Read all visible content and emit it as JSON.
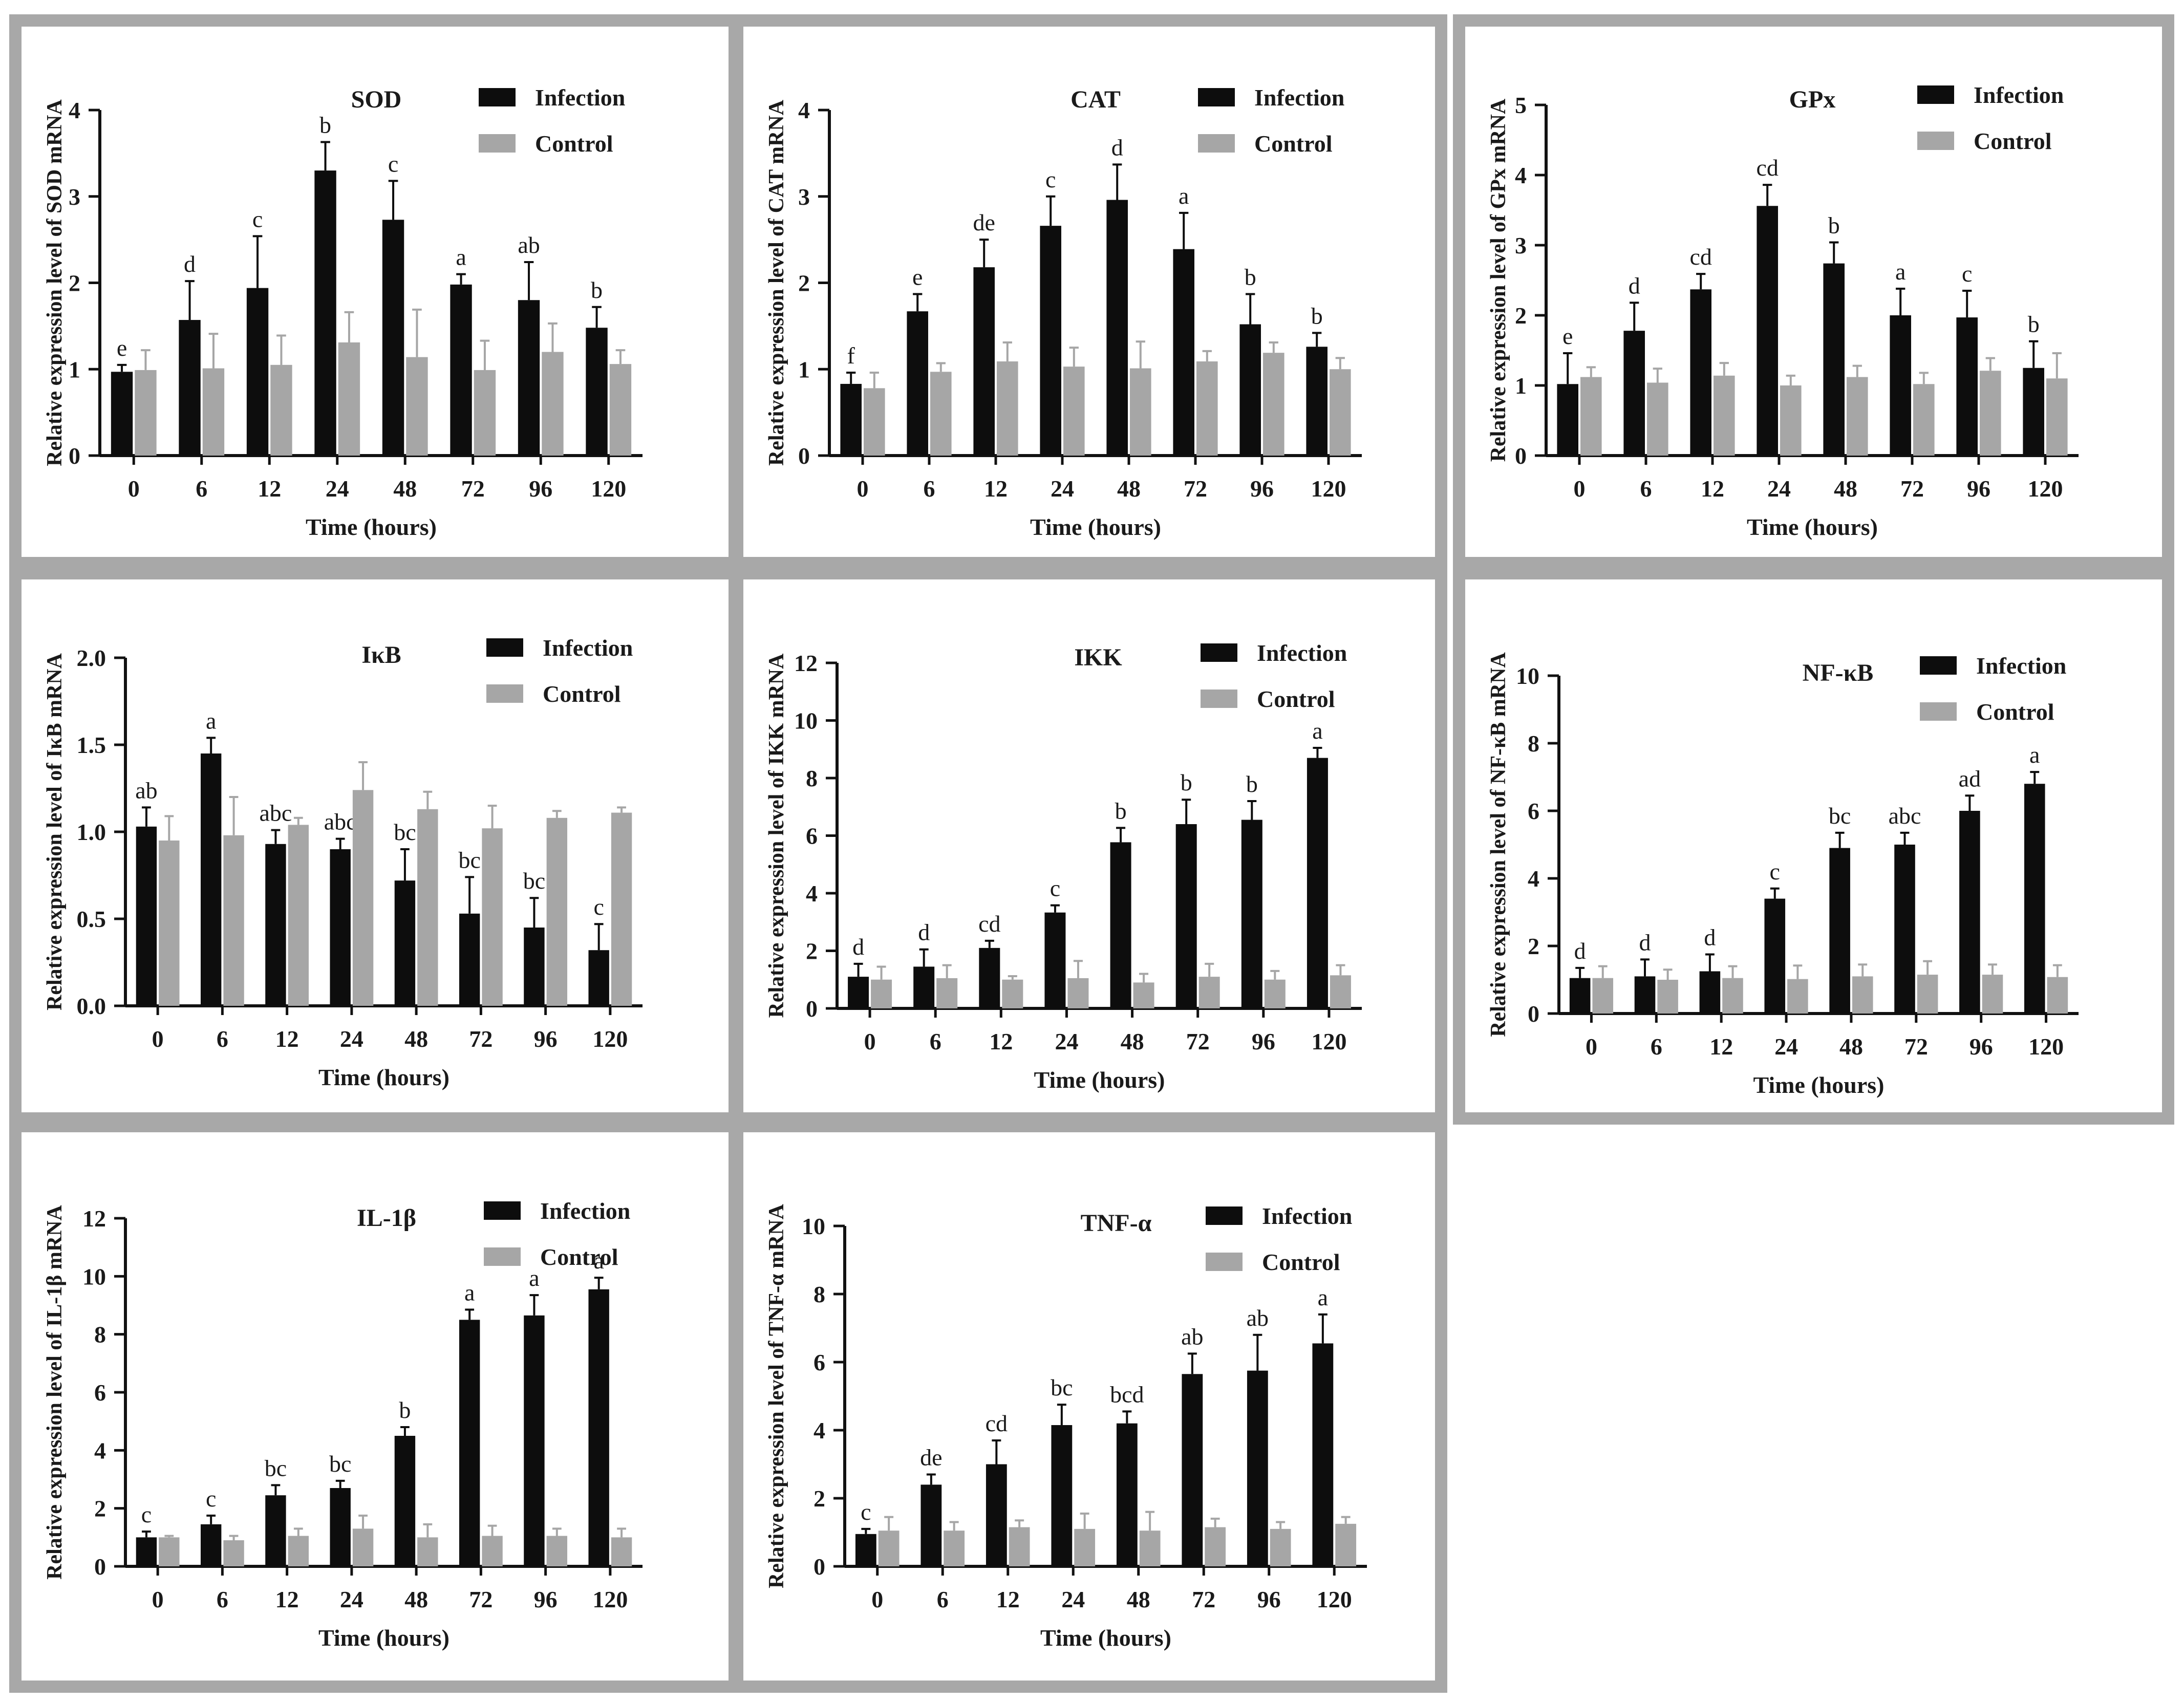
{
  "colors": {
    "infection": "#0d0d0d",
    "control": "#a6a6a6",
    "panel_border": "#a8a8a8",
    "background": "#ffffff"
  },
  "chart_data": [
    {
      "type": "bar",
      "title": "SOD",
      "ylabel": "Relative expression level of SOD mRNA",
      "xlabel": "Time (hours)",
      "categories": [
        "0",
        "6",
        "12",
        "24",
        "48",
        "72",
        "96",
        "120"
      ],
      "ylim": [
        0,
        4
      ],
      "yticks": [
        "0",
        "1",
        "2",
        "3",
        "4"
      ],
      "legend_position": "top-right",
      "series": [
        {
          "name": "Infection",
          "values": [
            0.97,
            1.57,
            1.94,
            3.3,
            2.73,
            1.98,
            1.8,
            1.48
          ],
          "errors": [
            0.08,
            0.45,
            0.6,
            0.33,
            0.45,
            0.12,
            0.44,
            0.24
          ],
          "labels": [
            "e",
            "d",
            "c",
            "b",
            "c",
            "a",
            "ab",
            "b"
          ]
        },
        {
          "name": "Control",
          "values": [
            0.99,
            1.01,
            1.05,
            1.31,
            1.14,
            0.99,
            1.2,
            1.06
          ],
          "errors": [
            0.23,
            0.4,
            0.34,
            0.35,
            0.55,
            0.34,
            0.33,
            0.16
          ]
        }
      ]
    },
    {
      "type": "bar",
      "title": "CAT",
      "ylabel": "Relative expression level of CAT mRNA",
      "xlabel": "Time (hours)",
      "categories": [
        "0",
        "6",
        "12",
        "24",
        "48",
        "72",
        "96",
        "120"
      ],
      "ylim": [
        0,
        4
      ],
      "yticks": [
        "0",
        "1",
        "2",
        "3",
        "4"
      ],
      "legend_position": "top-right",
      "series": [
        {
          "name": "Infection",
          "values": [
            0.83,
            1.67,
            2.18,
            2.66,
            2.96,
            2.39,
            1.52,
            1.26
          ],
          "errors": [
            0.13,
            0.2,
            0.32,
            0.34,
            0.41,
            0.42,
            0.35,
            0.16
          ],
          "labels": [
            "f",
            "e",
            "de",
            "c",
            "d",
            "a",
            "b",
            "b"
          ]
        },
        {
          "name": "Control",
          "values": [
            0.78,
            0.97,
            1.09,
            1.03,
            1.01,
            1.09,
            1.19,
            1.0
          ],
          "errors": [
            0.18,
            0.1,
            0.22,
            0.22,
            0.31,
            0.12,
            0.12,
            0.13
          ]
        }
      ]
    },
    {
      "type": "bar",
      "title": "GPx",
      "ylabel": "Relative expression level of GPx mRNA",
      "xlabel": "Time (hours)",
      "categories": [
        "0",
        "6",
        "12",
        "24",
        "48",
        "72",
        "96",
        "120"
      ],
      "ylim": [
        0,
        5
      ],
      "yticks": [
        "0",
        "1",
        "2",
        "3",
        "4",
        "5"
      ],
      "legend_position": "top-right",
      "series": [
        {
          "name": "Infection",
          "values": [
            1.02,
            1.78,
            2.37,
            3.56,
            2.74,
            2.0,
            1.97,
            1.25
          ],
          "errors": [
            0.44,
            0.4,
            0.22,
            0.3,
            0.3,
            0.38,
            0.38,
            0.38
          ],
          "labels": [
            "e",
            "d",
            "cd",
            "cd",
            "b",
            "a",
            "c",
            "b"
          ]
        },
        {
          "name": "Control",
          "values": [
            1.12,
            1.04,
            1.14,
            1.0,
            1.12,
            1.02,
            1.21,
            1.1
          ],
          "errors": [
            0.14,
            0.2,
            0.18,
            0.14,
            0.16,
            0.16,
            0.18,
            0.36
          ]
        }
      ]
    },
    {
      "type": "bar",
      "title": "IκB",
      "ylabel": "Relative expression level of IκB mRNA",
      "xlabel": "Time (hours)",
      "categories": [
        "0",
        "6",
        "12",
        "24",
        "48",
        "72",
        "96",
        "120"
      ],
      "ylim": [
        0,
        2
      ],
      "yticks": [
        "0.0",
        "0.5",
        "1.0",
        "1.5",
        "2.0"
      ],
      "legend_position": "top-right",
      "series": [
        {
          "name": "Infection",
          "values": [
            1.03,
            1.45,
            0.93,
            0.9,
            0.72,
            0.53,
            0.45,
            0.32
          ],
          "errors": [
            0.11,
            0.09,
            0.08,
            0.06,
            0.18,
            0.21,
            0.17,
            0.15
          ],
          "labels": [
            "ab",
            "a",
            "abc",
            "abc",
            "bc",
            "bc",
            "bc",
            "c"
          ]
        },
        {
          "name": "Control",
          "values": [
            0.95,
            0.98,
            1.04,
            1.24,
            1.13,
            1.02,
            1.08,
            1.11
          ],
          "errors": [
            0.14,
            0.22,
            0.04,
            0.16,
            0.1,
            0.13,
            0.04,
            0.03
          ]
        }
      ]
    },
    {
      "type": "bar",
      "title": "IKK",
      "ylabel": "Relative expression level of IKK mRNA",
      "xlabel": "Time (hours)",
      "categories": [
        "0",
        "6",
        "12",
        "24",
        "48",
        "72",
        "96",
        "120"
      ],
      "ylim": [
        0,
        12
      ],
      "yticks": [
        "0",
        "2",
        "4",
        "6",
        "8",
        "10",
        "12"
      ],
      "legend_position": "top-right",
      "series": [
        {
          "name": "Infection",
          "values": [
            1.1,
            1.45,
            2.1,
            3.33,
            5.77,
            6.4,
            6.55,
            8.7
          ],
          "errors": [
            0.45,
            0.6,
            0.25,
            0.25,
            0.5,
            0.85,
            0.65,
            0.35
          ],
          "labels": [
            "d",
            "d",
            "cd",
            "c",
            "b",
            "b",
            "b",
            "a"
          ]
        },
        {
          "name": "Control",
          "values": [
            1.0,
            1.05,
            1.0,
            1.05,
            0.9,
            1.1,
            1.0,
            1.15
          ],
          "errors": [
            0.45,
            0.45,
            0.12,
            0.6,
            0.3,
            0.45,
            0.3,
            0.35
          ]
        }
      ]
    },
    {
      "type": "bar",
      "title": "NF-κB",
      "ylabel": "Relative expression level of NF-κB mRNA",
      "xlabel": "Time (hours)",
      "categories": [
        "0",
        "6",
        "12",
        "24",
        "48",
        "72",
        "96",
        "120"
      ],
      "ylim": [
        0,
        10
      ],
      "yticks": [
        "0",
        "2",
        "4",
        "6",
        "8",
        "10"
      ],
      "legend_position": "top-right",
      "series": [
        {
          "name": "Infection",
          "values": [
            1.05,
            1.1,
            1.25,
            3.4,
            4.9,
            5.0,
            6.0,
            6.8
          ],
          "errors": [
            0.3,
            0.5,
            0.5,
            0.3,
            0.45,
            0.35,
            0.45,
            0.35
          ],
          "labels": [
            "d",
            "d",
            "d",
            "c",
            "bc",
            "abc",
            "ad",
            "a"
          ]
        },
        {
          "name": "Control",
          "values": [
            1.05,
            1.0,
            1.05,
            1.02,
            1.1,
            1.15,
            1.15,
            1.08
          ],
          "errors": [
            0.35,
            0.3,
            0.35,
            0.4,
            0.35,
            0.4,
            0.3,
            0.35
          ]
        }
      ]
    },
    {
      "type": "bar",
      "title": "IL-1β",
      "ylabel": "Relative expression level of IL-1β mRNA",
      "xlabel": "Time (hours)",
      "categories": [
        "0",
        "6",
        "12",
        "24",
        "48",
        "72",
        "96",
        "120"
      ],
      "ylim": [
        0,
        12
      ],
      "yticks": [
        "0",
        "2",
        "4",
        "6",
        "8",
        "10",
        "12"
      ],
      "legend_position": "top-right",
      "series": [
        {
          "name": "Infection",
          "values": [
            1.0,
            1.45,
            2.45,
            2.7,
            4.5,
            8.5,
            8.65,
            9.55
          ],
          "errors": [
            0.2,
            0.3,
            0.35,
            0.25,
            0.3,
            0.35,
            0.7,
            0.4
          ],
          "labels": [
            "c",
            "c",
            "bc",
            "bc",
            "b",
            "a",
            "a",
            "a"
          ]
        },
        {
          "name": "Control",
          "values": [
            1.0,
            0.9,
            1.05,
            1.3,
            1.0,
            1.05,
            1.05,
            1.0
          ],
          "errors": [
            0.05,
            0.15,
            0.25,
            0.45,
            0.45,
            0.35,
            0.25,
            0.3
          ]
        }
      ]
    },
    {
      "type": "bar",
      "title": "TNF-α",
      "ylabel": "Relative expression level of TNF-α mRNA",
      "xlabel": "Time (hours)",
      "categories": [
        "0",
        "6",
        "12",
        "24",
        "48",
        "72",
        "96",
        "120"
      ],
      "ylim": [
        0,
        10
      ],
      "yticks": [
        "0",
        "2",
        "4",
        "6",
        "8",
        "10"
      ],
      "legend_position": "top-right",
      "series": [
        {
          "name": "Infection",
          "values": [
            0.95,
            2.4,
            3.0,
            4.15,
            4.2,
            5.65,
            5.75,
            6.55
          ],
          "errors": [
            0.15,
            0.3,
            0.7,
            0.6,
            0.35,
            0.6,
            1.05,
            0.85
          ],
          "labels": [
            "c",
            "de",
            "cd",
            "bc",
            "bcd",
            "ab",
            "ab",
            "a"
          ]
        },
        {
          "name": "Control",
          "values": [
            1.05,
            1.05,
            1.15,
            1.1,
            1.05,
            1.15,
            1.1,
            1.25
          ],
          "errors": [
            0.4,
            0.25,
            0.2,
            0.45,
            0.55,
            0.25,
            0.2,
            0.2
          ]
        }
      ]
    }
  ]
}
